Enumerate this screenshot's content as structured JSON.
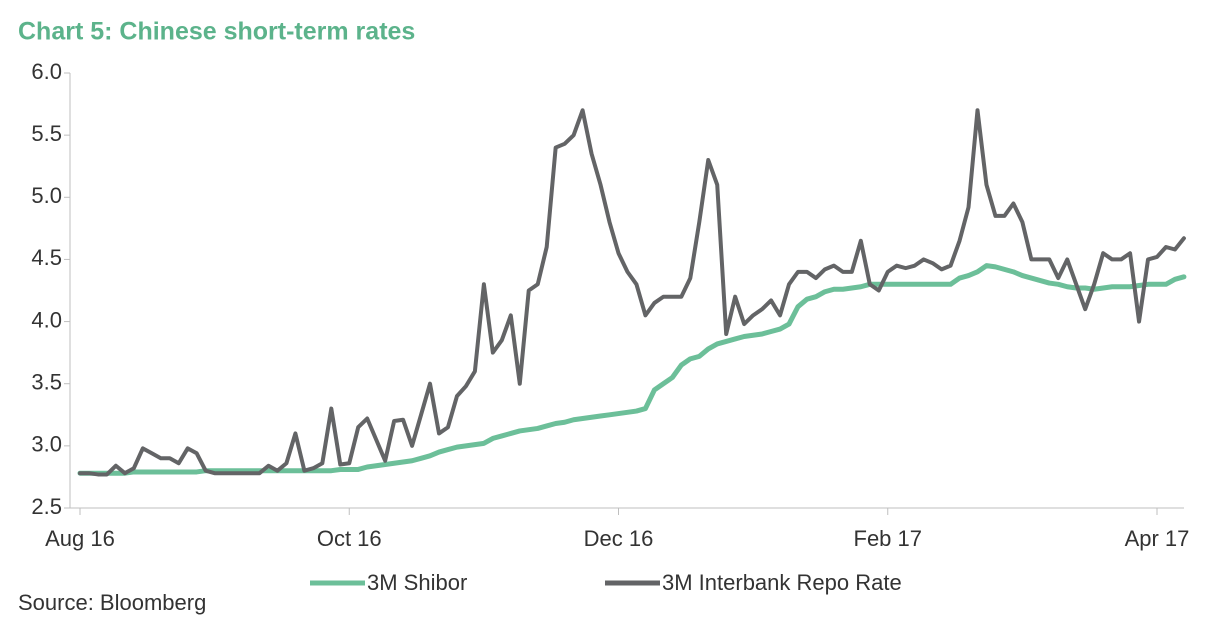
{
  "chart_data": {
    "type": "line",
    "title": "Chart 5: Chinese short-term rates",
    "source": "Source: Bloomberg",
    "title_color": "#5cb38b",
    "categories": [
      "Aug 16",
      null,
      null,
      null,
      null,
      null,
      null,
      null,
      null,
      null,
      null,
      null,
      null,
      null,
      null,
      null,
      null,
      null,
      null,
      null,
      null,
      null,
      null,
      null,
      null,
      null,
      null,
      null,
      null,
      null,
      "Oct 16",
      null,
      null,
      null,
      null,
      null,
      null,
      null,
      null,
      null,
      null,
      null,
      null,
      null,
      null,
      null,
      null,
      null,
      null,
      null,
      null,
      null,
      null,
      null,
      null,
      null,
      null,
      null,
      null,
      null,
      "Dec 16",
      null,
      null,
      null,
      null,
      null,
      null,
      null,
      null,
      null,
      null,
      null,
      null,
      null,
      null,
      null,
      null,
      null,
      null,
      null,
      null,
      null,
      null,
      null,
      null,
      null,
      null,
      null,
      null,
      null,
      "Feb 17",
      null,
      null,
      null,
      null,
      null,
      null,
      null,
      null,
      null,
      null,
      null,
      null,
      null,
      null,
      null,
      null,
      null,
      null,
      null,
      null,
      null,
      null,
      null,
      null,
      null,
      null,
      null,
      null,
      null,
      "Apr 17",
      null,
      null,
      null
    ],
    "series": [
      {
        "name": "3M Shibor",
        "color": "#6cbf99",
        "values": [
          2.78,
          2.78,
          2.78,
          2.78,
          2.78,
          2.78,
          2.79,
          2.79,
          2.79,
          2.79,
          2.79,
          2.79,
          2.79,
          2.79,
          2.8,
          2.8,
          2.8,
          2.8,
          2.8,
          2.8,
          2.8,
          2.8,
          2.8,
          2.8,
          2.8,
          2.8,
          2.8,
          2.8,
          2.8,
          2.81,
          2.81,
          2.81,
          2.83,
          2.84,
          2.85,
          2.86,
          2.87,
          2.88,
          2.9,
          2.92,
          2.95,
          2.97,
          2.99,
          3.0,
          3.01,
          3.02,
          3.06,
          3.08,
          3.1,
          3.12,
          3.13,
          3.14,
          3.16,
          3.18,
          3.19,
          3.21,
          3.22,
          3.23,
          3.24,
          3.25,
          3.26,
          3.27,
          3.28,
          3.3,
          3.45,
          3.5,
          3.55,
          3.65,
          3.7,
          3.72,
          3.78,
          3.82,
          3.84,
          3.86,
          3.88,
          3.89,
          3.9,
          3.92,
          3.94,
          3.98,
          4.12,
          4.18,
          4.2,
          4.24,
          4.26,
          4.26,
          4.27,
          4.28,
          4.3,
          4.3,
          4.3,
          4.3,
          4.3,
          4.3,
          4.3,
          4.3,
          4.3,
          4.3,
          4.35,
          4.37,
          4.4,
          4.45,
          4.44,
          4.42,
          4.4,
          4.37,
          4.35,
          4.33,
          4.31,
          4.3,
          4.28,
          4.27,
          4.27,
          4.26,
          4.27,
          4.28,
          4.28,
          4.28,
          4.29,
          4.3,
          4.3,
          4.3,
          4.34,
          4.36
        ]
      },
      {
        "name": "3M Interbank Repo Rate",
        "color": "#636466",
        "values": [
          2.78,
          2.78,
          2.77,
          2.77,
          2.84,
          2.78,
          2.82,
          2.98,
          2.94,
          2.9,
          2.9,
          2.86,
          2.98,
          2.94,
          2.8,
          2.78,
          2.78,
          2.78,
          2.78,
          2.78,
          2.78,
          2.84,
          2.8,
          2.86,
          3.1,
          2.8,
          2.82,
          2.86,
          3.3,
          2.85,
          2.86,
          3.15,
          3.22,
          3.05,
          2.88,
          3.2,
          3.21,
          3.0,
          3.25,
          3.5,
          3.1,
          3.15,
          3.4,
          3.48,
          3.6,
          4.3,
          3.75,
          3.85,
          4.05,
          3.5,
          4.25,
          4.3,
          4.6,
          5.4,
          5.43,
          5.5,
          5.7,
          5.35,
          5.1,
          4.8,
          4.55,
          4.4,
          4.3,
          4.05,
          4.15,
          4.2,
          4.2,
          4.2,
          4.35,
          4.8,
          5.3,
          5.1,
          3.9,
          4.2,
          3.98,
          4.05,
          4.1,
          4.17,
          4.05,
          4.3,
          4.4,
          4.4,
          4.35,
          4.42,
          4.45,
          4.4,
          4.4,
          4.65,
          4.3,
          4.25,
          4.4,
          4.45,
          4.43,
          4.45,
          4.5,
          4.47,
          4.42,
          4.45,
          4.65,
          4.92,
          5.7,
          5.1,
          4.85,
          4.85,
          4.95,
          4.8,
          4.5,
          4.5,
          4.5,
          4.35,
          4.5,
          4.3,
          4.1,
          4.3,
          4.55,
          4.5,
          4.5,
          4.55,
          4.0,
          4.5,
          4.52,
          4.6,
          4.58,
          4.67
        ]
      }
    ],
    "ylim": [
      2.5,
      6.0
    ],
    "yticks": [
      2.5,
      {
        "value": 3,
        "label": "3.0"
      },
      3.5,
      {
        "value": 4,
        "label": "4.0"
      },
      4.5,
      {
        "value": 5,
        "label": "5.0"
      },
      5.5,
      {
        "value": 6,
        "label": "6.0"
      }
    ],
    "grid": false,
    "legend": "bottom"
  }
}
